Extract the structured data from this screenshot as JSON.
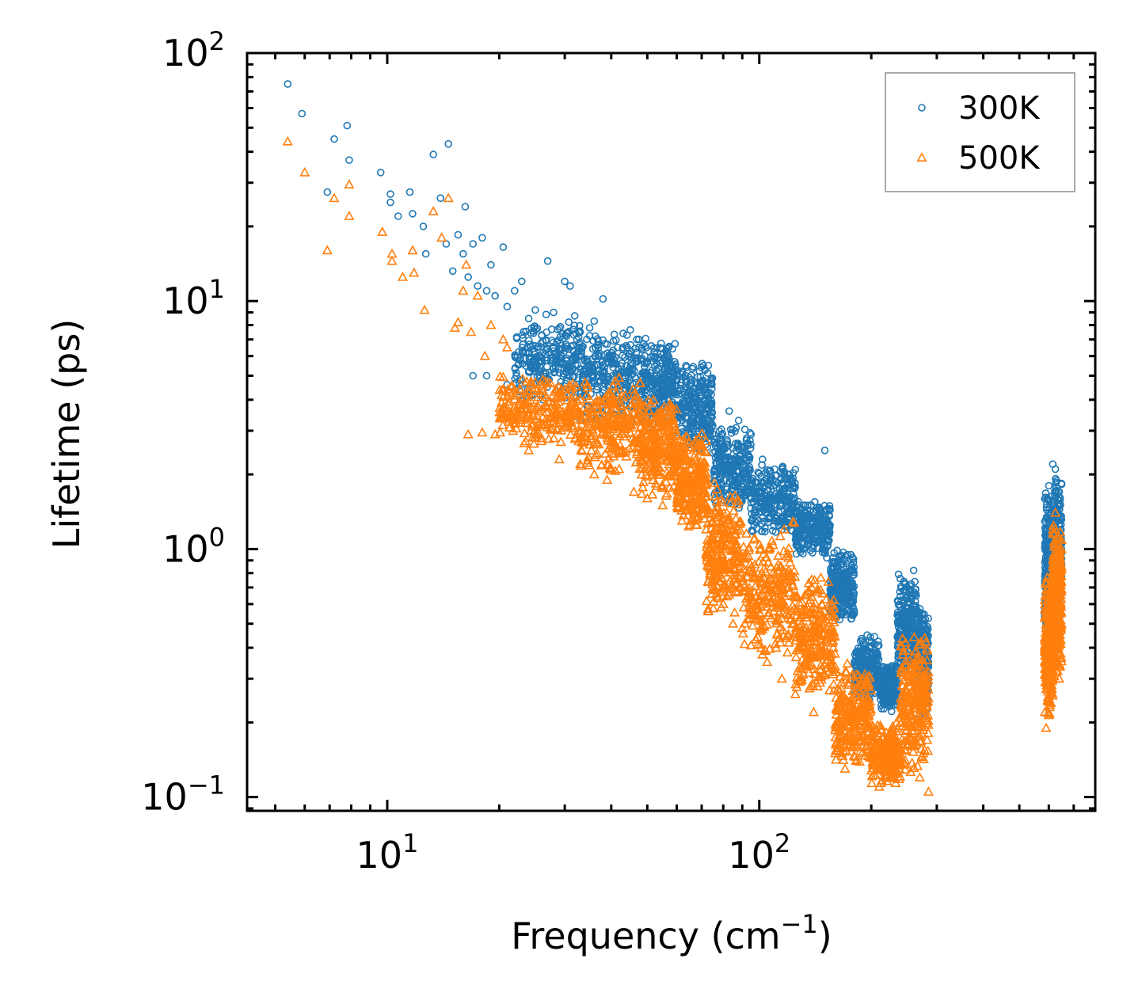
{
  "chart_data": {
    "type": "scatter",
    "title": "",
    "xlabel": "Frequency (cm",
    "xlabel_sup": "−1",
    "xlabel_end": ")",
    "ylabel": "Lifetime (ps)",
    "xscale": "log",
    "yscale": "log",
    "xlim": [
      4.2,
      800
    ],
    "ylim": [
      0.088,
      100
    ],
    "x_ticks": [
      {
        "value": 10,
        "base": "10",
        "exp": "1"
      },
      {
        "value": 100,
        "base": "10",
        "exp": "2"
      }
    ],
    "y_ticks": [
      {
        "value": 0.1,
        "base": "10",
        "exp": "−1"
      },
      {
        "value": 1,
        "base": "10",
        "exp": "0"
      },
      {
        "value": 10,
        "base": "10",
        "exp": "1"
      },
      {
        "value": 100,
        "base": "10",
        "exp": "2"
      }
    ],
    "legend_position": "top-right",
    "series": [
      {
        "name": "300K",
        "color": "#1f77b4",
        "marker": "circle",
        "points": [
          [
            5.4,
            75
          ],
          [
            5.9,
            57
          ],
          [
            6.9,
            27.5
          ],
          [
            7.2,
            45
          ],
          [
            7.8,
            51
          ],
          [
            7.9,
            37
          ],
          [
            9.6,
            33
          ],
          [
            10.2,
            27
          ],
          [
            10.2,
            25
          ],
          [
            10.7,
            22
          ],
          [
            11.5,
            27.5
          ],
          [
            11.7,
            22.5
          ],
          [
            12.5,
            20
          ],
          [
            12.7,
            15.5
          ],
          [
            13.3,
            39
          ],
          [
            13.9,
            26
          ],
          [
            14.4,
            17
          ],
          [
            14.6,
            43
          ],
          [
            15.0,
            13.2
          ],
          [
            15.5,
            18.5
          ],
          [
            16.0,
            15.5
          ],
          [
            16.2,
            24
          ],
          [
            16.5,
            12.5
          ],
          [
            17.0,
            17
          ],
          [
            17.5,
            11.5
          ],
          [
            18.0,
            18
          ],
          [
            18.5,
            11
          ],
          [
            19.0,
            14
          ],
          [
            19.5,
            10.5
          ],
          [
            20.5,
            16.5
          ],
          [
            21.0,
            9.5
          ],
          [
            22.0,
            11
          ],
          [
            23.0,
            12
          ],
          [
            24.0,
            8.5
          ],
          [
            25.0,
            9.2
          ],
          [
            27.0,
            14.5
          ],
          [
            28.0,
            9
          ],
          [
            30.0,
            12
          ],
          [
            31.0,
            11.5
          ],
          [
            33.0,
            7.5
          ],
          [
            35.0,
            7.8
          ],
          [
            36.0,
            8.3
          ],
          [
            38.0,
            10.2
          ],
          [
            40.0,
            6
          ],
          [
            43.0,
            6.5
          ],
          [
            17.0,
            5
          ],
          [
            18.5,
            5
          ],
          [
            21.0,
            4.6
          ],
          [
            24.0,
            5.2
          ],
          [
            27.0,
            4.8
          ],
          [
            30.0,
            5.5
          ],
          [
            34.0,
            5.2
          ],
          [
            150.0,
            2.5
          ],
          [
            83.0,
            3.6
          ],
          [
            88.0,
            3.3
          ],
          [
            95.0,
            2.9
          ],
          [
            102.0,
            2.3
          ],
          [
            110.0,
            2.1
          ],
          [
            120.0,
            2.0
          ],
          [
            135.0,
            1.5
          ],
          [
            150.0,
            1.2
          ],
          [
            175.0,
            0.75
          ],
          [
            180.0,
            0.55
          ],
          [
            195.0,
            0.45
          ],
          [
            200.0,
            0.42
          ],
          [
            260.0,
            0.82
          ],
          [
            275.0,
            0.5
          ],
          [
            285.0,
            0.3
          ],
          [
            615.0,
            2.2
          ],
          [
            625.0,
            2.1
          ],
          [
            640.0,
            1.5
          ],
          [
            600.0,
            1.8
          ],
          [
            585.0,
            0.55
          ]
        ],
        "bands": [
          {
            "x_range": [
              22,
              33
            ],
            "y_low": 3.8,
            "y_high": 9.0
          },
          {
            "x_range": [
              33,
              48
            ],
            "y_low": 3.2,
            "y_high": 8.0
          },
          {
            "x_range": [
              48,
              60
            ],
            "y_low": 3.0,
            "y_high": 7.2
          },
          {
            "x_range": [
              60,
              75
            ],
            "y_low": 2.4,
            "y_high": 5.8
          },
          {
            "x_range": [
              75,
              95
            ],
            "y_low": 1.4,
            "y_high": 3.2
          },
          {
            "x_range": [
              95,
              125
            ],
            "y_low": 1.1,
            "y_high": 2.3
          },
          {
            "x_range": [
              125,
              155
            ],
            "y_low": 0.9,
            "y_high": 1.6
          },
          {
            "x_range": [
              155,
              180
            ],
            "y_low": 0.5,
            "y_high": 1.0
          },
          {
            "x_range": [
              180,
              210
            ],
            "y_low": 0.24,
            "y_high": 0.45
          },
          {
            "x_range": [
              210,
              235
            ],
            "y_low": 0.22,
            "y_high": 0.35
          },
          {
            "x_range": [
              235,
              265
            ],
            "y_low": 0.3,
            "y_high": 0.8
          },
          {
            "x_range": [
              265,
              285
            ],
            "y_low": 0.2,
            "y_high": 0.6
          },
          {
            "x_range": [
              585,
              615
            ],
            "y_low": 0.35,
            "y_high": 1.9
          },
          {
            "x_range": [
              615,
              650
            ],
            "y_low": 0.45,
            "y_high": 2.1
          }
        ]
      },
      {
        "name": "500K",
        "color": "#ff7f0e",
        "marker": "triangle",
        "points": [
          [
            5.4,
            44
          ],
          [
            6.0,
            33
          ],
          [
            6.9,
            16
          ],
          [
            7.2,
            26
          ],
          [
            7.9,
            29.5
          ],
          [
            7.9,
            22
          ],
          [
            9.7,
            19
          ],
          [
            10.3,
            15.5
          ],
          [
            10.3,
            14.5
          ],
          [
            11.0,
            12.5
          ],
          [
            11.7,
            16
          ],
          [
            11.8,
            13
          ],
          [
            12.6,
            9.2
          ],
          [
            13.3,
            23
          ],
          [
            14.0,
            18
          ],
          [
            14.6,
            26
          ],
          [
            15.2,
            7.8
          ],
          [
            15.5,
            8.2
          ],
          [
            16.0,
            11
          ],
          [
            16.3,
            14
          ],
          [
            16.8,
            7.5
          ],
          [
            17.5,
            10.5
          ],
          [
            18.3,
            6
          ],
          [
            19.0,
            8
          ],
          [
            20.5,
            7
          ],
          [
            21.0,
            6.5
          ],
          [
            16.5,
            2.9
          ],
          [
            18.0,
            2.95
          ],
          [
            19.5,
            2.9
          ],
          [
            21.0,
            3.5
          ],
          [
            22.0,
            3.2
          ],
          [
            24.0,
            2.5
          ],
          [
            26.0,
            2.8
          ],
          [
            29.0,
            2.3
          ],
          [
            33.0,
            2.2
          ],
          [
            36.0,
            2.0
          ],
          [
            39.0,
            1.9
          ],
          [
            42.0,
            2.1
          ],
          [
            46.0,
            1.7
          ],
          [
            50.0,
            1.6
          ],
          [
            55.0,
            1.5
          ],
          [
            62.0,
            1.3
          ],
          [
            68.0,
            1.25
          ],
          [
            72.0,
            1.2
          ],
          [
            80.0,
            0.6
          ],
          [
            85.0,
            0.5
          ],
          [
            90.0,
            0.48
          ],
          [
            105.0,
            0.35
          ],
          [
            115.0,
            0.3
          ],
          [
            125.0,
            0.26
          ],
          [
            140.0,
            0.22
          ],
          [
            160.0,
            0.15
          ],
          [
            170.0,
            0.13
          ],
          [
            190.0,
            0.16
          ],
          [
            210.0,
            0.11
          ],
          [
            225.0,
            0.12
          ],
          [
            255.0,
            0.16
          ],
          [
            270.0,
            0.12
          ],
          [
            285.0,
            0.105
          ],
          [
            590.0,
            0.19
          ],
          [
            600.0,
            0.25
          ],
          [
            640.0,
            0.3
          ],
          [
            625.0,
            1.4
          ],
          [
            615.0,
            1.2
          ]
        ],
        "bands": [
          {
            "x_range": [
              20,
              33
            ],
            "y_low": 2.6,
            "y_high": 5.2
          },
          {
            "x_range": [
              33,
              48
            ],
            "y_low": 2.0,
            "y_high": 5.0
          },
          {
            "x_range": [
              48,
              60
            ],
            "y_low": 1.6,
            "y_high": 4.2
          },
          {
            "x_range": [
              60,
              72
            ],
            "y_low": 1.2,
            "y_high": 3.0
          },
          {
            "x_range": [
              72,
              90
            ],
            "y_low": 0.5,
            "y_high": 1.9
          },
          {
            "x_range": [
              90,
              125
            ],
            "y_low": 0.35,
            "y_high": 1.3
          },
          {
            "x_range": [
              125,
              160
            ],
            "y_low": 0.25,
            "y_high": 0.8
          },
          {
            "x_range": [
              160,
              200
            ],
            "y_low": 0.13,
            "y_high": 0.35
          },
          {
            "x_range": [
              200,
              240
            ],
            "y_low": 0.11,
            "y_high": 0.2
          },
          {
            "x_range": [
              240,
              285
            ],
            "y_low": 0.12,
            "y_high": 0.48
          },
          {
            "x_range": [
              585,
              615
            ],
            "y_low": 0.2,
            "y_high": 0.8
          },
          {
            "x_range": [
              615,
              650
            ],
            "y_low": 0.3,
            "y_high": 1.35
          }
        ]
      }
    ]
  }
}
